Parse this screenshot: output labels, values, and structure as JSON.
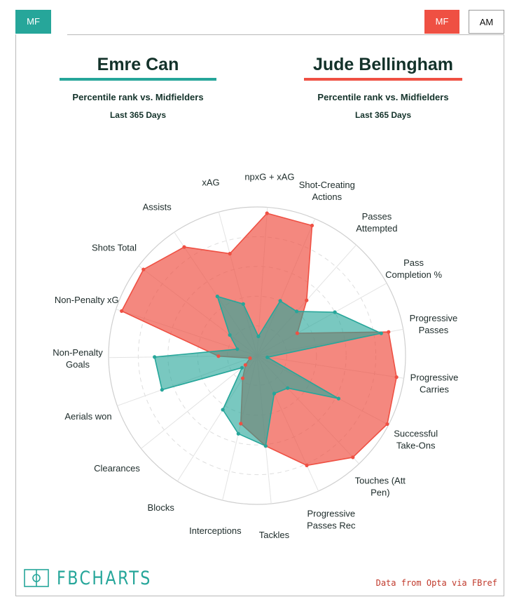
{
  "tabs": {
    "left": "MF",
    "right": [
      {
        "label": "MF",
        "active": true
      },
      {
        "label": "AM",
        "active": false
      }
    ]
  },
  "players": {
    "left": {
      "name": "Emre Can",
      "color": "#26a69a"
    },
    "right": {
      "name": "Jude Bellingham",
      "color": "#ef5043"
    }
  },
  "subtitle": "Percentile rank vs. Midfielders",
  "period": "Last 365 Days",
  "source": "Data from Opta via FBref",
  "logo": "FBCHARTS",
  "chart_data": {
    "type": "radar",
    "range": [
      0,
      100
    ],
    "grid_rings": [
      20,
      40,
      60,
      80,
      100
    ],
    "axes": [
      "npxG + xAG",
      "Shot-Creating Actions",
      "Passes Attempted",
      "Pass Completion %",
      "Progressive Passes",
      "Progressive Carries",
      "Successful Take-Ons",
      "Touches (Att Pen)",
      "Progressive Passes Rec",
      "Tackles",
      "Interceptions",
      "Blocks",
      "Clearances",
      "Aerials won",
      "Non-Penalty Goals",
      "Non-Penalty xG",
      "Shots Total",
      "Assists",
      "xAG"
    ],
    "series": [
      {
        "name": "Emre Can",
        "color": "#26a69a",
        "values": [
          13,
          40,
          40,
          60,
          85,
          7,
          62,
          30,
          28,
          61,
          54,
          43,
          13,
          68,
          69,
          14,
          23,
          48,
          36
        ]
      },
      {
        "name": "Jude Bellingham",
        "color": "#ef5043",
        "values": [
          96,
          95,
          50,
          31,
          90,
          95,
          99,
          94,
          81,
          61,
          47,
          18,
          10,
          5,
          26,
          96,
          96,
          88,
          71
        ]
      }
    ]
  }
}
